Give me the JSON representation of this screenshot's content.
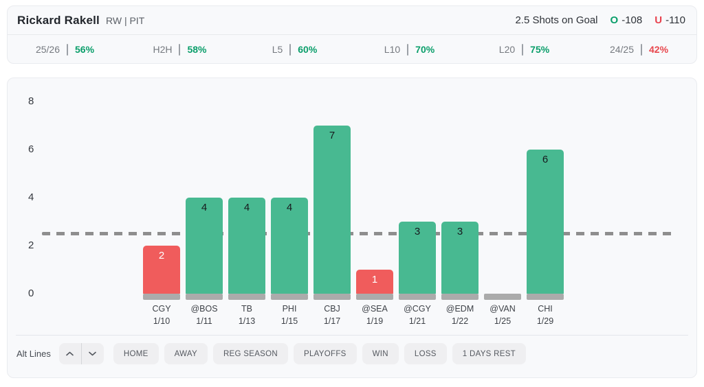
{
  "header": {
    "player": "Rickard Rakell",
    "position_team": "RW | PIT",
    "prop": "2.5 Shots on Goal",
    "over_label": "O",
    "over_odds": "-108",
    "under_label": "U",
    "under_odds": "-110"
  },
  "splits": [
    {
      "label": "25/26",
      "value": "56%",
      "positive": true
    },
    {
      "label": "H2H",
      "value": "58%",
      "positive": true
    },
    {
      "label": "L5",
      "value": "60%",
      "positive": true
    },
    {
      "label": "L10",
      "value": "70%",
      "positive": true
    },
    {
      "label": "L20",
      "value": "75%",
      "positive": true
    },
    {
      "label": "24/25",
      "value": "42%",
      "positive": false
    }
  ],
  "chart_data": {
    "type": "bar",
    "categories": [
      "CGY",
      "@BOS",
      "TB",
      "PHI",
      "CBJ",
      "@SEA",
      "@CGY",
      "@EDM",
      "@VAN",
      "CHI"
    ],
    "dates": [
      "1/10",
      "1/11",
      "1/13",
      "1/15",
      "1/17",
      "1/19",
      "1/21",
      "1/22",
      "1/25",
      "1/29"
    ],
    "values": [
      2,
      4,
      4,
      4,
      7,
      1,
      3,
      3,
      0,
      6
    ],
    "prop_line": 2.5,
    "yticks": [
      0,
      2,
      4,
      6,
      8
    ],
    "ylim": [
      0,
      8.6
    ],
    "xlabel": "",
    "ylabel": "",
    "grid": false,
    "legend": false,
    "colors": {
      "over_bar": "#48b991",
      "under_bar": "#f05c5c",
      "base_strip": "#ababab",
      "prop_line": "#8e8e8e"
    }
  },
  "controls": {
    "alt_lines_label": "Alt Lines",
    "stepper": [
      "up",
      "down"
    ],
    "filters": [
      "HOME",
      "AWAY",
      "REG SEASON",
      "PLAYOFFS",
      "WIN",
      "LOSS",
      "1 DAYS REST"
    ]
  },
  "status_colors": {
    "positive": "#0a9e6a",
    "negative": "#e8474d"
  }
}
